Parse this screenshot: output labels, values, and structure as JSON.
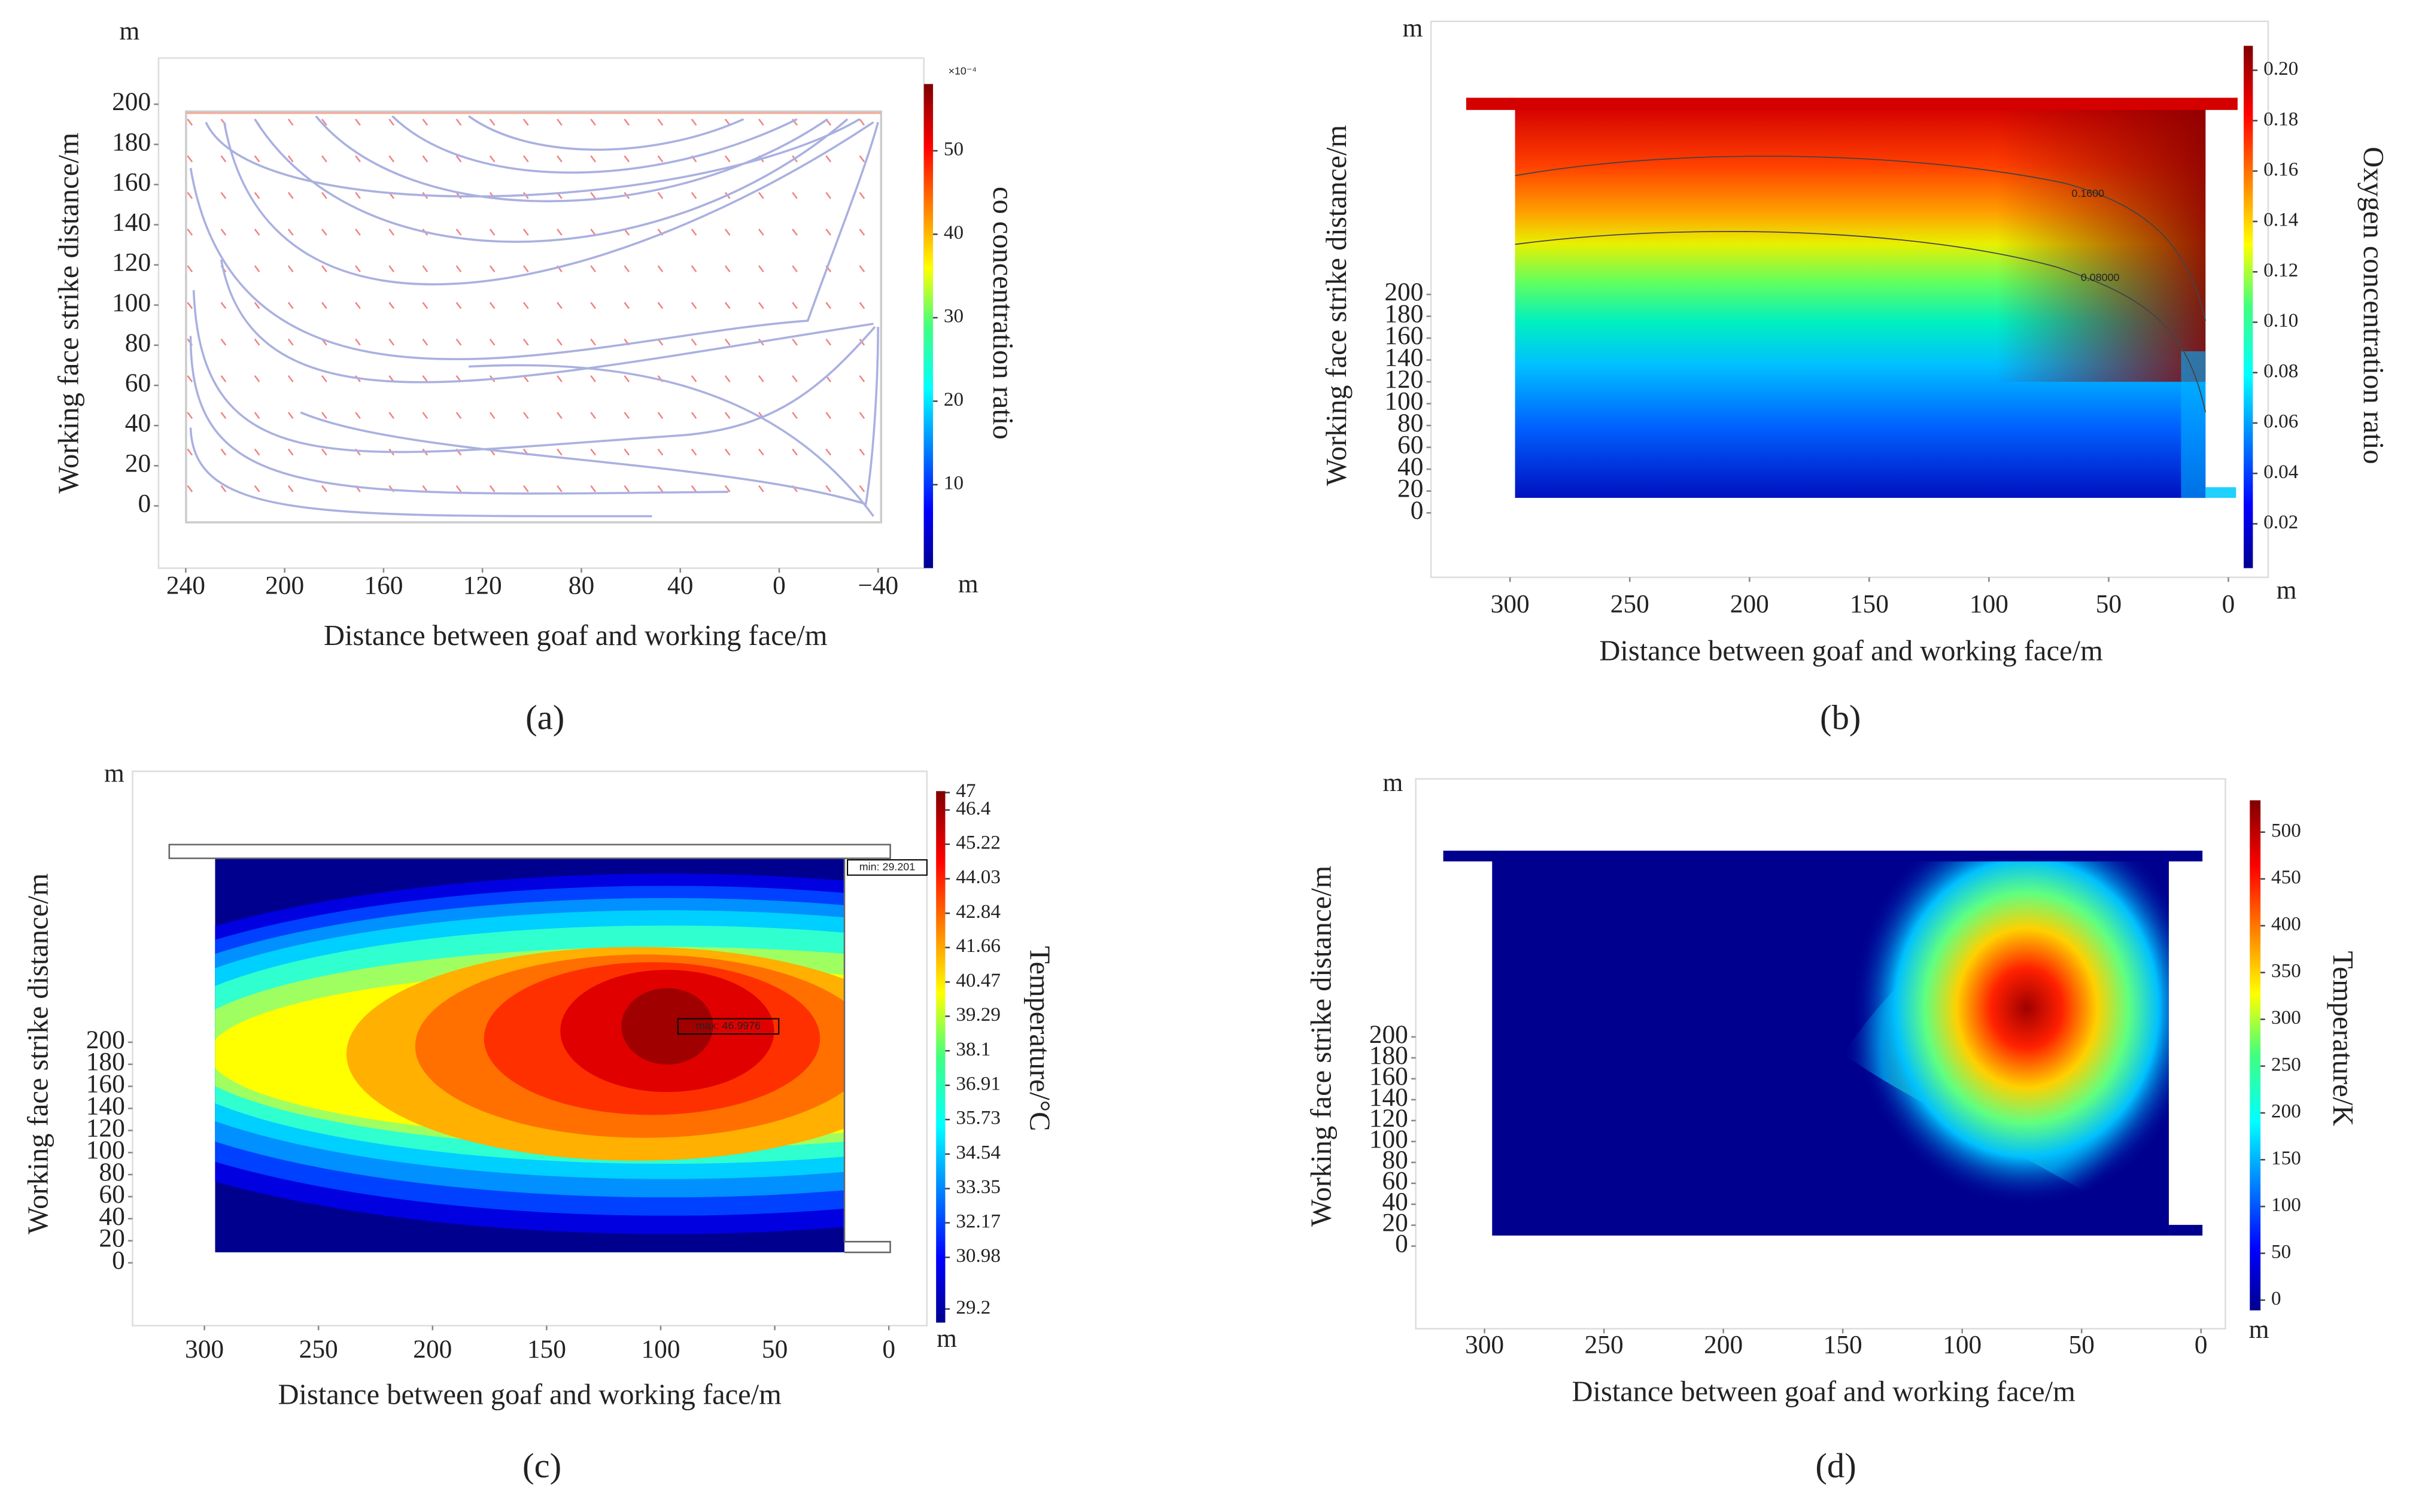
{
  "chart_data": [
    {
      "type": "streamline",
      "panel_label": "(a)",
      "x_label": "Distance between goaf and working face/m",
      "y_label": "Working face strike distance/m",
      "y_unit": "m",
      "colorbar_unit": "m",
      "colorbar_label": "co concentration ratio",
      "colorbar_exponent": "×10⁻⁴",
      "colormap": "jet",
      "xlim": [
        251,
        -58.5
      ],
      "ylim": [
        -31,
        223
      ],
      "xticks": [
        240,
        200,
        160,
        120,
        80,
        40,
        0,
        {
          "value": -40,
          "label": "−40"
        }
      ],
      "yticks": [
        0,
        20,
        40,
        60,
        80,
        100,
        120,
        140,
        160,
        180,
        200
      ],
      "clim": [
        0,
        58
      ],
      "cticks": [
        10,
        20,
        30,
        40,
        50
      ]
    },
    {
      "type": "heatmap",
      "panel_label": "(b)",
      "x_label": "Distance between goaf and working face/m",
      "y_label": "Working face strike distance/m",
      "y_unit": "m",
      "colorbar_unit": "m",
      "colorbar_label": "Oxygen concentration ratio",
      "colormap": "jet",
      "xlim": [
        333,
        -16.6
      ],
      "ylim": [
        -59,
        450
      ],
      "xticks": [
        300,
        250,
        200,
        150,
        100,
        50,
        0
      ],
      "yticks": [
        0,
        20,
        40,
        60,
        80,
        100,
        120,
        140,
        160,
        180,
        200
      ],
      "clim": [
        0.0024,
        0.2097
      ],
      "cticks": [
        {
          "value": 0.02,
          "label": "0.02"
        },
        {
          "value": 0.04,
          "label": "0.04"
        },
        {
          "value": 0.06,
          "label": "0.06"
        },
        {
          "value": 0.08,
          "label": "0.08"
        },
        {
          "value": 0.1,
          "label": "0.10"
        },
        {
          "value": 0.12,
          "label": "0.12"
        },
        {
          "value": 0.14,
          "label": "0.14"
        },
        {
          "value": 0.16,
          "label": "0.16"
        },
        {
          "value": 0.18,
          "label": "0.18"
        },
        {
          "value": 0.2,
          "label": "0.20"
        }
      ],
      "annotations": [
        "0.1600",
        "0.08000"
      ]
    },
    {
      "type": "contour",
      "panel_label": "(c)",
      "x_label": "Distance between goaf and working face/m",
      "y_label": "Working face strike distance/m",
      "y_unit": "m",
      "colorbar_unit": "m",
      "colorbar_label": "Temperature/°C",
      "colormap": "jet",
      "xlim": [
        331.5,
        -16.7
      ],
      "ylim": [
        -57,
        445.7
      ],
      "xticks": [
        300,
        250,
        200,
        150,
        100,
        50,
        0
      ],
      "yticks": [
        0,
        20,
        40,
        60,
        80,
        100,
        120,
        140,
        160,
        180,
        200
      ],
      "clim": [
        28.73,
        47.05
      ],
      "cticks": [
        47,
        46.4,
        45.22,
        44.03,
        42.84,
        41.66,
        40.47,
        39.29,
        38.1,
        36.91,
        35.73,
        34.54,
        33.35,
        32.17,
        30.98,
        29.2
      ],
      "annotations": [
        "min: 29.201",
        "max: 46.9976"
      ]
    },
    {
      "type": "heatmap",
      "panel_label": "(d)",
      "x_label": "Distance between goaf and working face/m",
      "y_label": "Working face strike distance/m",
      "y_unit": "m",
      "colorbar_unit": "m",
      "colorbar_label": "Temperature/K",
      "colormap": "jet",
      "xlim": [
        328.8,
        -10.2
      ],
      "ylim": [
        -79,
        446.7
      ],
      "xticks": [
        300,
        250,
        200,
        150,
        100,
        50,
        0
      ],
      "yticks": [
        0,
        20,
        40,
        60,
        80,
        100,
        120,
        140,
        160,
        180,
        200
      ],
      "clim": [
        -11,
        534
      ],
      "cticks": [
        0,
        50,
        100,
        150,
        200,
        250,
        300,
        350,
        400,
        450,
        500
      ]
    }
  ]
}
